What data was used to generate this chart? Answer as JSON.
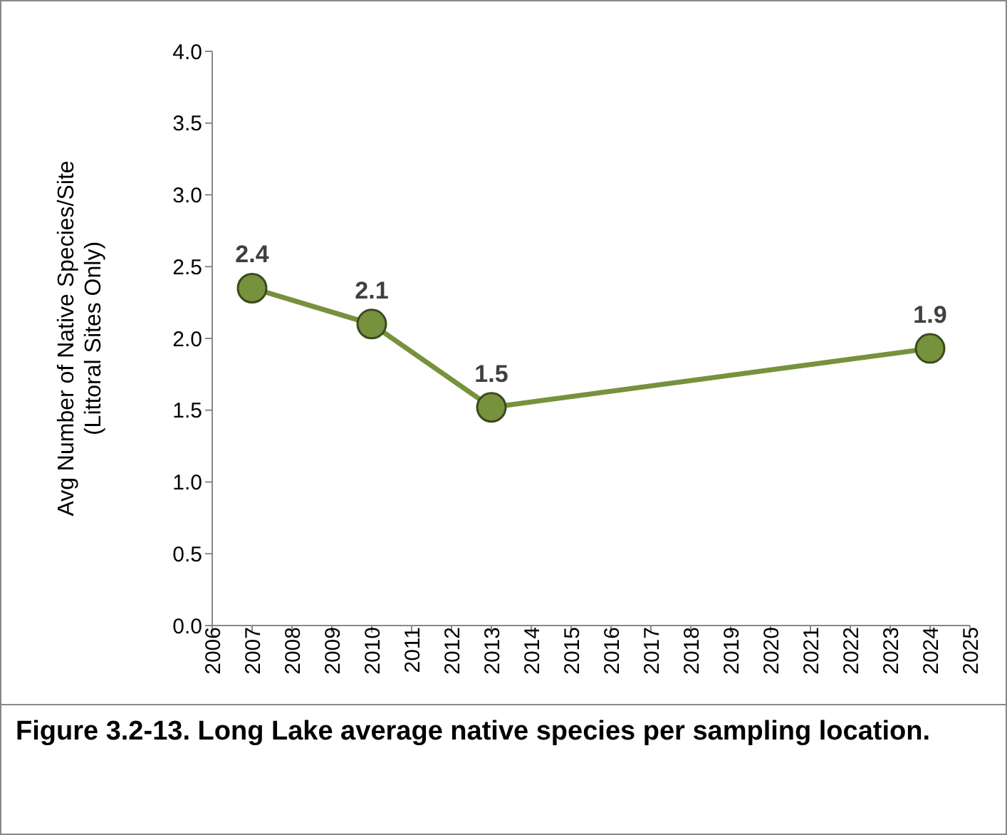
{
  "chart_data": {
    "type": "line",
    "title": "Figure 3.2-13.  Long Lake average native species per sampling location.",
    "ylabel": "Avg Number of Native Species/Site\n(Littoral Sites Only)",
    "x": [
      2007,
      2010,
      2013,
      2024
    ],
    "series": [
      {
        "color": "#76923c",
        "values": [
          2.35,
          2.1,
          1.52,
          1.93
        ],
        "value_labels": [
          "2.4",
          "2.1",
          "1.5",
          "1.9"
        ]
      }
    ],
    "xlim": [
      2006,
      2025
    ],
    "xticks": [
      2006,
      2007,
      2008,
      2009,
      2010,
      2011,
      2012,
      2013,
      2014,
      2015,
      2016,
      2017,
      2018,
      2019,
      2020,
      2021,
      2022,
      2023,
      2024,
      2025
    ],
    "ylim": [
      0,
      4
    ],
    "yticks": [
      {
        "value": 0,
        "label": "0.0"
      },
      {
        "value": 0.5,
        "label": "0.5"
      },
      {
        "value": 1,
        "label": "1.0"
      },
      {
        "value": 1.5,
        "label": "1.5"
      },
      {
        "value": 2,
        "label": "2.0"
      },
      {
        "value": 2.5,
        "label": "2.5"
      },
      {
        "value": 3,
        "label": "3.0"
      },
      {
        "value": 3.5,
        "label": "3.5"
      },
      {
        "value": 4,
        "label": "4.0"
      }
    ],
    "grid": false,
    "legend": false,
    "marker": "circle",
    "line_style": "solid"
  }
}
